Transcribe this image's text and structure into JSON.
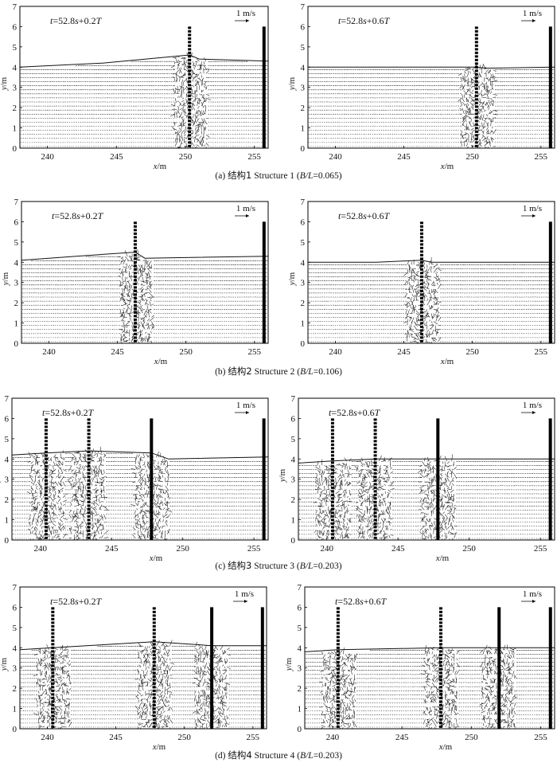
{
  "figure": {
    "captions": [
      {
        "prefix": "(a) ",
        "zh": "结构1",
        "en": " Structure 1 (",
        "ratio_var": "B/L",
        "ratio_val": "=0.065)"
      },
      {
        "prefix": "(b) ",
        "zh": "结构2",
        "en": " Structure 2 (",
        "ratio_var": "B/L",
        "ratio_val": "=0.106)"
      },
      {
        "prefix": "(c) ",
        "zh": "结构3",
        "en": " Structure 3 (",
        "ratio_var": "B/L",
        "ratio_val": "=0.203)"
      },
      {
        "prefix": "(d) ",
        "zh": "结构4",
        "en": " Structure 4 (",
        "ratio_var": "B/L",
        "ratio_val": "=0.203)"
      }
    ]
  },
  "chart_data": {
    "type": "vector-field",
    "xlabel_var": "x",
    "xlabel_unit": "/m",
    "ylabel_var": "y",
    "ylabel_unit": "/m",
    "xlim": [
      238,
      256
    ],
    "ylim": [
      0,
      7
    ],
    "xticks": [
      240,
      245,
      250,
      255
    ],
    "yticks": [
      0,
      1,
      2,
      3,
      4,
      5,
      6,
      7
    ],
    "scale_label": "1 m/s",
    "panels": [
      {
        "structure": 1,
        "time_label": "t=52.8s+0.2T",
        "surface": [
          [
            238,
            4.0
          ],
          [
            244,
            4.2
          ],
          [
            250.3,
            4.6
          ],
          [
            251,
            4.4
          ],
          [
            256,
            4.3
          ]
        ],
        "barriers": [
          {
            "x": 250.3,
            "top": 6.0,
            "style": "dashed"
          },
          {
            "x": 255.7,
            "top": 6.0,
            "style": "solid"
          }
        ]
      },
      {
        "structure": 1,
        "time_label": "t=52.8s+0.6T",
        "surface": [
          [
            238,
            4.0
          ],
          [
            244,
            4.0
          ],
          [
            250.3,
            4.0
          ],
          [
            251,
            3.95
          ],
          [
            256,
            4.0
          ]
        ],
        "barriers": [
          {
            "x": 250.3,
            "top": 6.0,
            "style": "dashed"
          },
          {
            "x": 255.7,
            "top": 6.0,
            "style": "solid"
          }
        ]
      },
      {
        "structure": 2,
        "time_label": "t=52.8s+0.2T",
        "surface": [
          [
            238,
            4.1
          ],
          [
            242,
            4.3
          ],
          [
            246.3,
            4.5
          ],
          [
            247,
            4.2
          ],
          [
            256,
            4.3
          ]
        ],
        "barriers": [
          {
            "x": 246.3,
            "top": 6.0,
            "style": "dashed"
          },
          {
            "x": 255.7,
            "top": 6.0,
            "style": "solid"
          }
        ]
      },
      {
        "structure": 2,
        "time_label": "t=52.8s+0.6T",
        "surface": [
          [
            238,
            4.0
          ],
          [
            243,
            4.0
          ],
          [
            246.3,
            4.1
          ],
          [
            247,
            4.0
          ],
          [
            256,
            4.0
          ]
        ],
        "barriers": [
          {
            "x": 246.3,
            "top": 6.0,
            "style": "dashed"
          },
          {
            "x": 255.7,
            "top": 6.0,
            "style": "solid"
          }
        ]
      },
      {
        "structure": 3,
        "time_label": "t=52.8s+0.2T",
        "surface": [
          [
            238,
            4.2
          ],
          [
            240.4,
            4.3
          ],
          [
            243.4,
            4.4
          ],
          [
            247.8,
            4.3
          ],
          [
            249,
            4.0
          ],
          [
            256,
            4.1
          ]
        ],
        "barriers": [
          {
            "x": 240.4,
            "top": 6.0,
            "style": "dashed"
          },
          {
            "x": 243.4,
            "top": 6.0,
            "style": "dashed"
          },
          {
            "x": 247.8,
            "top": 6.0,
            "style": "solid"
          },
          {
            "x": 255.7,
            "top": 6.0,
            "style": "solid"
          }
        ]
      },
      {
        "structure": 3,
        "time_label": "t=52.8s+0.6T",
        "surface": [
          [
            238,
            3.8
          ],
          [
            240.4,
            3.9
          ],
          [
            243.4,
            4.0
          ],
          [
            247.8,
            4.0
          ],
          [
            256,
            4.0
          ]
        ],
        "barriers": [
          {
            "x": 240.4,
            "top": 6.0,
            "style": "dashed"
          },
          {
            "x": 243.4,
            "top": 6.0,
            "style": "dashed"
          },
          {
            "x": 247.8,
            "top": 6.0,
            "style": "solid"
          },
          {
            "x": 255.7,
            "top": 6.0,
            "style": "solid"
          }
        ]
      },
      {
        "structure": 4,
        "time_label": "t=52.8s+0.2T",
        "surface": [
          [
            238,
            3.9
          ],
          [
            240.4,
            4.0
          ],
          [
            247.8,
            4.3
          ],
          [
            252,
            4.1
          ],
          [
            256,
            4.1
          ]
        ],
        "barriers": [
          {
            "x": 240.4,
            "top": 6.0,
            "style": "dashed"
          },
          {
            "x": 247.8,
            "top": 6.0,
            "style": "dashed"
          },
          {
            "x": 252.0,
            "top": 6.0,
            "style": "solid"
          },
          {
            "x": 255.7,
            "top": 6.0,
            "style": "solid"
          }
        ]
      },
      {
        "structure": 4,
        "time_label": "t=52.8s+0.6T",
        "surface": [
          [
            238,
            3.8
          ],
          [
            240.4,
            3.9
          ],
          [
            247.8,
            4.0
          ],
          [
            252,
            4.0
          ],
          [
            256,
            4.0
          ]
        ],
        "barriers": [
          {
            "x": 240.4,
            "top": 6.0,
            "style": "dashed"
          },
          {
            "x": 247.8,
            "top": 6.0,
            "style": "dashed"
          },
          {
            "x": 252.0,
            "top": 6.0,
            "style": "solid"
          },
          {
            "x": 255.7,
            "top": 6.0,
            "style": "solid"
          }
        ]
      }
    ]
  }
}
